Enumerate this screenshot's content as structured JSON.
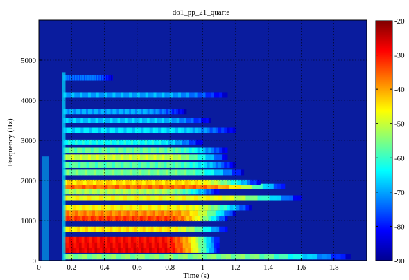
{
  "chart_data": {
    "type": "heatmap",
    "title": "do1_pp_21_quarte",
    "xlabel": "Time (s)",
    "ylabel": "Frequency (Hz)",
    "xlim": [
      0,
      2.0
    ],
    "ylim": [
      0,
      6000
    ],
    "x_ticks": [
      "0",
      "0.2",
      "0.4",
      "0.6",
      "0.8",
      "1",
      "1.2",
      "1.4",
      "1.6",
      "1.8"
    ],
    "y_ticks": [
      "0",
      "1000",
      "2000",
      "3000",
      "4000",
      "5000"
    ],
    "grid": true,
    "colorbar": {
      "range": [
        -90,
        -20
      ],
      "ticks": [
        "-20",
        "-30",
        "-40",
        "-50",
        "-60",
        "-70",
        "-80",
        "-90"
      ],
      "colormap": "jet"
    },
    "onset_s": 0.15,
    "decay_end_s": 1.15,
    "bands": [
      {
        "freq_hz": 100,
        "level_db": -55,
        "end_s": 1.9
      },
      {
        "freq_hz": 260,
        "level_db": -27,
        "end_s": 1.1
      },
      {
        "freq_hz": 390,
        "level_db": -28,
        "end_s": 1.1
      },
      {
        "freq_hz": 520,
        "level_db": -29,
        "end_s": 1.1
      },
      {
        "freq_hz": 780,
        "level_db": -45,
        "end_s": 1.15
      },
      {
        "freq_hz": 1050,
        "level_db": -33,
        "end_s": 1.15
      },
      {
        "freq_hz": 1180,
        "level_db": -38,
        "end_s": 1.2
      },
      {
        "freq_hz": 1320,
        "level_db": -46,
        "end_s": 1.3
      },
      {
        "freq_hz": 1560,
        "level_db": -47,
        "end_s": 1.6
      },
      {
        "freq_hz": 1720,
        "level_db": -52,
        "end_s": 1.1
      },
      {
        "freq_hz": 1850,
        "level_db": -36,
        "end_s": 1.5
      },
      {
        "freq_hz": 1950,
        "level_db": -44,
        "end_s": 1.35
      },
      {
        "freq_hz": 2200,
        "level_db": -56,
        "end_s": 1.25
      },
      {
        "freq_hz": 2380,
        "level_db": -58,
        "end_s": 1.2
      },
      {
        "freq_hz": 2580,
        "level_db": -50,
        "end_s": 1.15
      },
      {
        "freq_hz": 2750,
        "level_db": -57,
        "end_s": 1.15
      },
      {
        "freq_hz": 2950,
        "level_db": -63,
        "end_s": 1.0
      },
      {
        "freq_hz": 3250,
        "level_db": -66,
        "end_s": 1.2
      },
      {
        "freq_hz": 3500,
        "level_db": -68,
        "end_s": 1.05
      },
      {
        "freq_hz": 3720,
        "level_db": -70,
        "end_s": 0.9
      },
      {
        "freq_hz": 4130,
        "level_db": -70,
        "end_s": 1.15
      },
      {
        "freq_hz": 4560,
        "level_db": -74,
        "end_s": 0.45
      }
    ]
  }
}
